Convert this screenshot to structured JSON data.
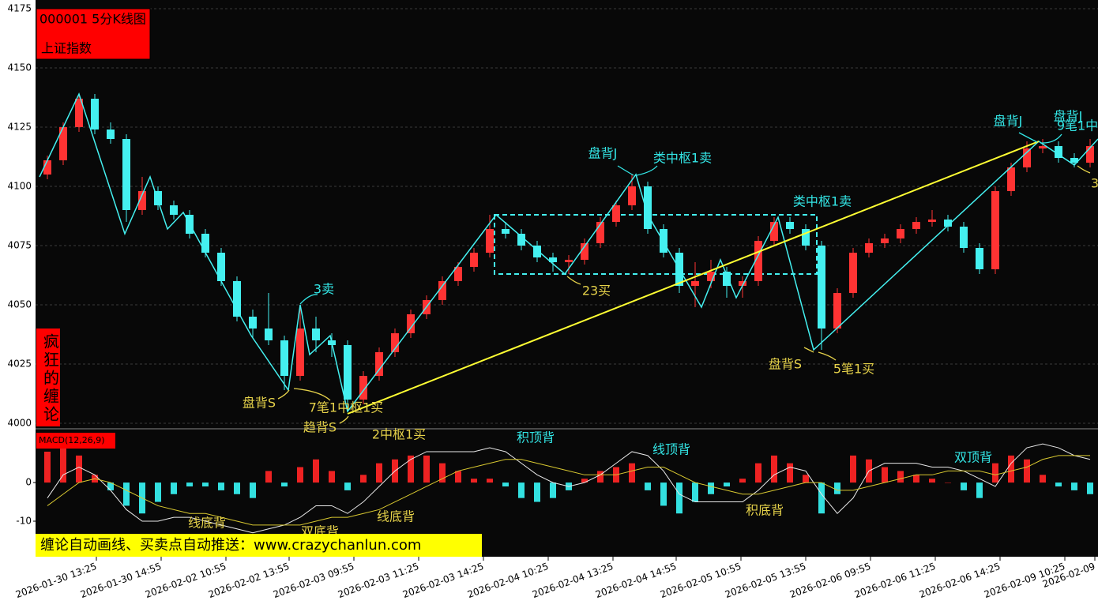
{
  "chart_data": [
    {
      "type": "candlestick",
      "title": "000001 5分K线图",
      "subtitle": "上证指数",
      "side_label": "疯狂的缠论",
      "banner": "缠论自动画线、买卖点自动推送：www.crazychanlun.com",
      "up_color": "#ff3333",
      "down_color": "#44f0f0",
      "grid": true,
      "xlim": [
        -0.5,
        66.5
      ],
      "ylim": [
        4000,
        4175
      ],
      "yticks": [
        4000,
        4025,
        4050,
        4075,
        4100,
        4125,
        4150,
        4175
      ],
      "xticks": [
        {
          "value": 3.1,
          "label": "2026-01-30 13:25"
        },
        {
          "value": 7.2,
          "label": "2026-01-30 14:55"
        },
        {
          "value": 11.3,
          "label": "2026-02-02 10:55"
        },
        {
          "value": 15.3,
          "label": "2026-02-02 13:55"
        },
        {
          "value": 19.4,
          "label": "2026-02-03 09:55"
        },
        {
          "value": 23.5,
          "label": "2026-02-03 11:25"
        },
        {
          "value": 27.6,
          "label": "2026-02-03 14:25"
        },
        {
          "value": 31.7,
          "label": "2026-02-04 10:25"
        },
        {
          "value": 35.8,
          "label": "2026-02-04 13:25"
        },
        {
          "value": 39.8,
          "label": "2026-02-04 14:55"
        },
        {
          "value": 43.9,
          "label": "2026-02-05 10:55"
        },
        {
          "value": 48.0,
          "label": "2026-02-05 13:55"
        },
        {
          "value": 52.1,
          "label": "2026-02-06 09:55"
        },
        {
          "value": 56.2,
          "label": "2026-02-06 11:25"
        },
        {
          "value": 60.3,
          "label": "2026-02-06 14:25"
        },
        {
          "value": 64.4,
          "label": "2026-02-09 10:25"
        },
        {
          "value": 66.3,
          "label": "2026-02-09"
        }
      ],
      "ohlc": [
        [
          4105,
          4113,
          4103,
          4111
        ],
        [
          4111,
          4127,
          4109,
          4125
        ],
        [
          4125,
          4139,
          4123,
          4137
        ],
        [
          4137,
          4139,
          4122,
          4124
        ],
        [
          4124,
          4127,
          4118,
          4120
        ],
        [
          4120,
          4122,
          4085,
          4090
        ],
        [
          4090,
          4104,
          4088,
          4098
        ],
        [
          4098,
          4100,
          4090,
          4092
        ],
        [
          4092,
          4094,
          4086,
          4088
        ],
        [
          4088,
          4090,
          4078,
          4080
        ],
        [
          4080,
          4082,
          4070,
          4072
        ],
        [
          4072,
          4074,
          4058,
          4060
        ],
        [
          4060,
          4062,
          4043,
          4045
        ],
        [
          4045,
          4048,
          4036,
          4040
        ],
        [
          4040,
          4055,
          4033,
          4035
        ],
        [
          4035,
          4037,
          4014,
          4020
        ],
        [
          4020,
          4050,
          4018,
          4040
        ],
        [
          4040,
          4045,
          4030,
          4035
        ],
        [
          4035,
          4038,
          4028,
          4033
        ],
        [
          4033,
          4035,
          4005,
          4010
        ],
        [
          4010,
          4022,
          4008,
          4020
        ],
        [
          4020,
          4032,
          4018,
          4030
        ],
        [
          4030,
          4040,
          4028,
          4038
        ],
        [
          4038,
          4048,
          4036,
          4046
        ],
        [
          4046,
          4054,
          4044,
          4052
        ],
        [
          4052,
          4062,
          4050,
          4060
        ],
        [
          4060,
          4068,
          4058,
          4066
        ],
        [
          4066,
          4074,
          4064,
          4072
        ],
        [
          4072,
          4088,
          4070,
          4082
        ],
        [
          4082,
          4085,
          4078,
          4080
        ],
        [
          4080,
          4082,
          4073,
          4075
        ],
        [
          4075,
          4077,
          4068,
          4070
        ],
        [
          4070,
          4072,
          4064,
          4068
        ],
        [
          4068,
          4071,
          4063,
          4069
        ],
        [
          4069,
          4078,
          4067,
          4076
        ],
        [
          4076,
          4087,
          4074,
          4085
        ],
        [
          4085,
          4094,
          4083,
          4092
        ],
        [
          4092,
          4105,
          4090,
          4100
        ],
        [
          4100,
          4102,
          4080,
          4082
        ],
        [
          4082,
          4084,
          4070,
          4072
        ],
        [
          4072,
          4074,
          4055,
          4058
        ],
        [
          4058,
          4068,
          4049,
          4060
        ],
        [
          4060,
          4069,
          4057,
          4064
        ],
        [
          4064,
          4066,
          4053,
          4058
        ],
        [
          4058,
          4062,
          4053,
          4060
        ],
        [
          4060,
          4079,
          4058,
          4077
        ],
        [
          4077,
          4087,
          4075,
          4085
        ],
        [
          4085,
          4087,
          4080,
          4082
        ],
        [
          4082,
          4084,
          4073,
          4075
        ],
        [
          4075,
          4077,
          4031,
          4040
        ],
        [
          4040,
          4057,
          4038,
          4055
        ],
        [
          4055,
          4074,
          4053,
          4072
        ],
        [
          4072,
          4078,
          4070,
          4076
        ],
        [
          4076,
          4080,
          4074,
          4078
        ],
        [
          4078,
          4084,
          4076,
          4082
        ],
        [
          4082,
          4087,
          4080,
          4085
        ],
        [
          4085,
          4090,
          4083,
          4086
        ],
        [
          4086,
          4088,
          4081,
          4083
        ],
        [
          4083,
          4085,
          4072,
          4074
        ],
        [
          4074,
          4076,
          4063,
          4065
        ],
        [
          4065,
          4100,
          4063,
          4098
        ],
        [
          4098,
          4110,
          4096,
          4108
        ],
        [
          4108,
          4119,
          4106,
          4116
        ],
        [
          4116,
          4120,
          4114,
          4117
        ],
        [
          4117,
          4119,
          4110,
          4112
        ],
        [
          4112,
          4114,
          4108,
          4110
        ],
        [
          4110,
          4120,
          4108,
          4117
        ]
      ],
      "strokes": {
        "color": "#44f0f0",
        "x": [
          -0.5,
          2,
          4.9,
          6.5,
          7.6,
          8.6,
          12.9,
          15.25,
          16,
          16.6,
          17.9,
          19,
          28.4,
          32.75,
          37.25,
          38,
          41.4,
          42.6,
          43.6,
          46.25,
          48.5,
          62.75,
          65,
          66.5
        ],
        "y": [
          4104,
          4139,
          4080,
          4104,
          4082,
          4089,
          4037,
          4014,
          4050,
          4029,
          4037,
          4005,
          4088,
          4063,
          4105,
          4088,
          4049,
          4069,
          4053,
          4087,
          4031,
          4119,
          4109,
          4120
        ]
      },
      "trend_line": {
        "color": "#ffff33",
        "x": [
          19,
          62.75
        ],
        "y": [
          4004,
          4119
        ]
      },
      "zones": [
        {
          "color": "#44f0f0",
          "x": [
            28.3,
            48.7
          ],
          "y": [
            4063,
            4088
          ]
        }
      ],
      "annotations": [
        {
          "text": "3卖",
          "color": "#33e6e6"
        },
        {
          "text": "盘背S",
          "color": "#e6d24a"
        },
        {
          "text": "7笔1中枢1买",
          "color": "#e6d24a"
        },
        {
          "text": "趋背S",
          "color": "#e6d24a"
        },
        {
          "text": "2中枢1买",
          "color": "#e6d24a"
        },
        {
          "text": "23买",
          "color": "#e6d24a"
        },
        {
          "text": "盘背J",
          "color": "#33e6e6"
        },
        {
          "text": "类中枢1卖",
          "color": "#33e6e6"
        },
        {
          "text": "类中枢1卖",
          "color": "#33e6e6"
        },
        {
          "text": "盘背S",
          "color": "#e6d24a"
        },
        {
          "text": "5笔1买",
          "color": "#e6d24a"
        },
        {
          "text": "盘背J",
          "color": "#33e6e6"
        },
        {
          "text": "盘背J",
          "color": "#33e6e6"
        },
        {
          "text": "9笔1中",
          "color": "#33e6e6"
        },
        {
          "text": "3",
          "color": "#e6d24a"
        }
      ]
    },
    {
      "type": "macd",
      "title": "MACD(12,26,9)",
      "xlim": [
        -0.5,
        66.5
      ],
      "ylim": [
        -19.2,
        12.9
      ],
      "yticks": [
        -10,
        0
      ],
      "up_color": "#ee2222",
      "down_color": "#33e0e0",
      "histogram": [
        8,
        9,
        7,
        2,
        -2,
        -6,
        -8,
        -5,
        -3,
        -1,
        -1,
        -2,
        -3,
        -4,
        3,
        -1,
        4,
        6,
        3,
        -2,
        2,
        5,
        6,
        7,
        7,
        5,
        3,
        1,
        1,
        -1,
        -4,
        -5,
        -4,
        -2,
        1,
        3,
        4,
        5,
        -2,
        -6,
        -8,
        -5,
        -3,
        -1,
        1,
        5,
        7,
        5,
        2,
        -8,
        -3,
        7,
        6,
        4,
        3,
        2,
        1,
        0,
        -2,
        -4,
        5,
        7,
        6,
        2,
        -1,
        -2,
        -3
      ],
      "series": [
        {
          "name": "DIF",
          "color": "#e8e8e8",
          "values": [
            -4,
            2,
            4,
            2,
            -2,
            -7,
            -10,
            -10,
            -9,
            -9,
            -10,
            -11,
            -12,
            -13,
            -12,
            -11,
            -9,
            -6,
            -6,
            -8,
            -5,
            -1,
            3,
            6,
            8,
            8,
            8,
            8,
            9,
            8,
            5,
            2,
            0,
            -1,
            0,
            2,
            5,
            8,
            7,
            3,
            -3,
            -5,
            -5,
            -5,
            -5,
            -2,
            2,
            4,
            3,
            -3,
            -8,
            -4,
            3,
            5,
            5,
            5,
            4,
            4,
            3,
            1,
            -1,
            5,
            9,
            10,
            9,
            7,
            6
          ]
        },
        {
          "name": "DEA",
          "color": "#d8c830",
          "values": [
            -6,
            -3,
            0,
            1,
            0,
            -2,
            -4,
            -6,
            -7,
            -8,
            -8,
            -9,
            -10,
            -11,
            -11,
            -11,
            -11,
            -10,
            -9,
            -9,
            -8,
            -7,
            -5,
            -3,
            -1,
            1,
            3,
            4,
            5,
            6,
            6,
            5,
            4,
            3,
            2,
            2,
            2,
            3,
            4,
            4,
            2,
            0,
            -1,
            -2,
            -3,
            -3,
            -2,
            -1,
            0,
            0,
            -2,
            -2,
            -1,
            0,
            1,
            2,
            2,
            3,
            3,
            3,
            2,
            3,
            4,
            6,
            7,
            7,
            7
          ]
        }
      ],
      "annotations": [
        {
          "text": "积顶背",
          "color": "#33e6e6"
        },
        {
          "text": "线顶背",
          "color": "#33e6e6"
        },
        {
          "text": "双顶背",
          "color": "#33e6e6"
        },
        {
          "text": "积底背",
          "color": "#e6d24a"
        },
        {
          "text": "线底背",
          "color": "#e6d24a"
        },
        {
          "text": "线底背",
          "color": "#e6d24a"
        },
        {
          "text": "双底背",
          "color": "#e6d24a"
        }
      ]
    }
  ]
}
